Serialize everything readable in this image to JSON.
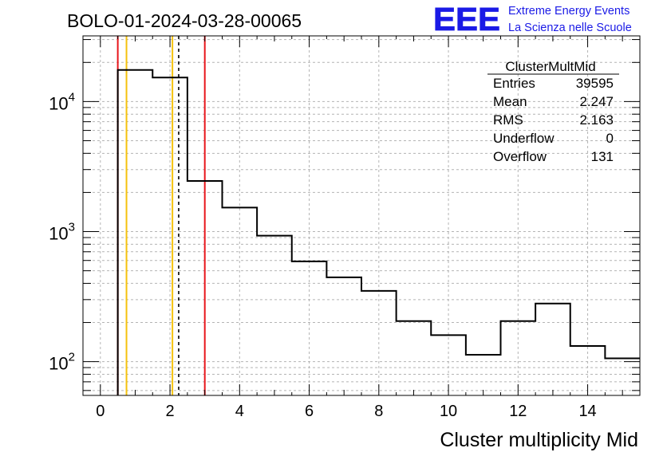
{
  "header": {
    "run_title": "BOLO-01-2024-03-28-00065",
    "logo_text": "EEE",
    "logo_line1": "Extreme Energy Events",
    "logo_line2": "La Scienza nelle Scuole"
  },
  "stats": {
    "name": "ClusterMultMid",
    "rows": [
      {
        "label": "Entries",
        "value": "39595"
      },
      {
        "label": "Mean",
        "value": "2.247"
      },
      {
        "label": "RMS",
        "value": "2.163"
      },
      {
        "label": "Underflow",
        "value": "0"
      },
      {
        "label": "Overflow",
        "value": "131"
      }
    ]
  },
  "chart_data": {
    "type": "histogram",
    "title": "BOLO-01-2024-03-28-00065",
    "xlabel": "Cluster multiplicity Mid",
    "ylabel": "",
    "xlim": [
      -0.5,
      15.5
    ],
    "ylim": [
      55,
      32000
    ],
    "yscale": "log",
    "grid": true,
    "x_ticks": [
      0,
      2,
      4,
      6,
      8,
      10,
      12,
      14
    ],
    "x_tick_labels": [
      "0",
      "2",
      "4",
      "6",
      "8",
      "10",
      "12",
      "14"
    ],
    "y_ticks": [
      100,
      1000,
      10000
    ],
    "y_tick_labels": [
      {
        "base": "10",
        "exp": "2"
      },
      {
        "base": "10",
        "exp": "3"
      },
      {
        "base": "10",
        "exp": "4"
      }
    ],
    "bins": [
      {
        "lo": 0.5,
        "hi": 1.5,
        "value": 17500
      },
      {
        "lo": 1.5,
        "hi": 2.5,
        "value": 15300
      },
      {
        "lo": 2.5,
        "hi": 3.5,
        "value": 2450
      },
      {
        "lo": 3.5,
        "hi": 4.5,
        "value": 1530
      },
      {
        "lo": 4.5,
        "hi": 5.5,
        "value": 930
      },
      {
        "lo": 5.5,
        "hi": 6.5,
        "value": 590
      },
      {
        "lo": 6.5,
        "hi": 7.5,
        "value": 445
      },
      {
        "lo": 7.5,
        "hi": 8.5,
        "value": 350
      },
      {
        "lo": 8.5,
        "hi": 9.5,
        "value": 205
      },
      {
        "lo": 9.5,
        "hi": 10.5,
        "value": 160
      },
      {
        "lo": 10.5,
        "hi": 11.5,
        "value": 113
      },
      {
        "lo": 11.5,
        "hi": 12.5,
        "value": 205
      },
      {
        "lo": 12.5,
        "hi": 13.5,
        "value": 280
      },
      {
        "lo": 13.5,
        "hi": 14.5,
        "value": 132
      },
      {
        "lo": 14.5,
        "hi": 15.5,
        "value": 106
      }
    ],
    "markers": [
      {
        "x": 0.5,
        "color": "#e8161c",
        "style": "solid"
      },
      {
        "x": 0.75,
        "color": "#f4c20d",
        "style": "solid"
      },
      {
        "x": 2.07,
        "color": "#f4c20d",
        "style": "solid"
      },
      {
        "x": 2.25,
        "color": "#000000",
        "style": "dashed"
      },
      {
        "x": 3.0,
        "color": "#e8161c",
        "style": "solid"
      }
    ],
    "colors": {
      "line": "#000000",
      "grid": "#b4b4b4",
      "logo": "#1a1ae6"
    }
  }
}
